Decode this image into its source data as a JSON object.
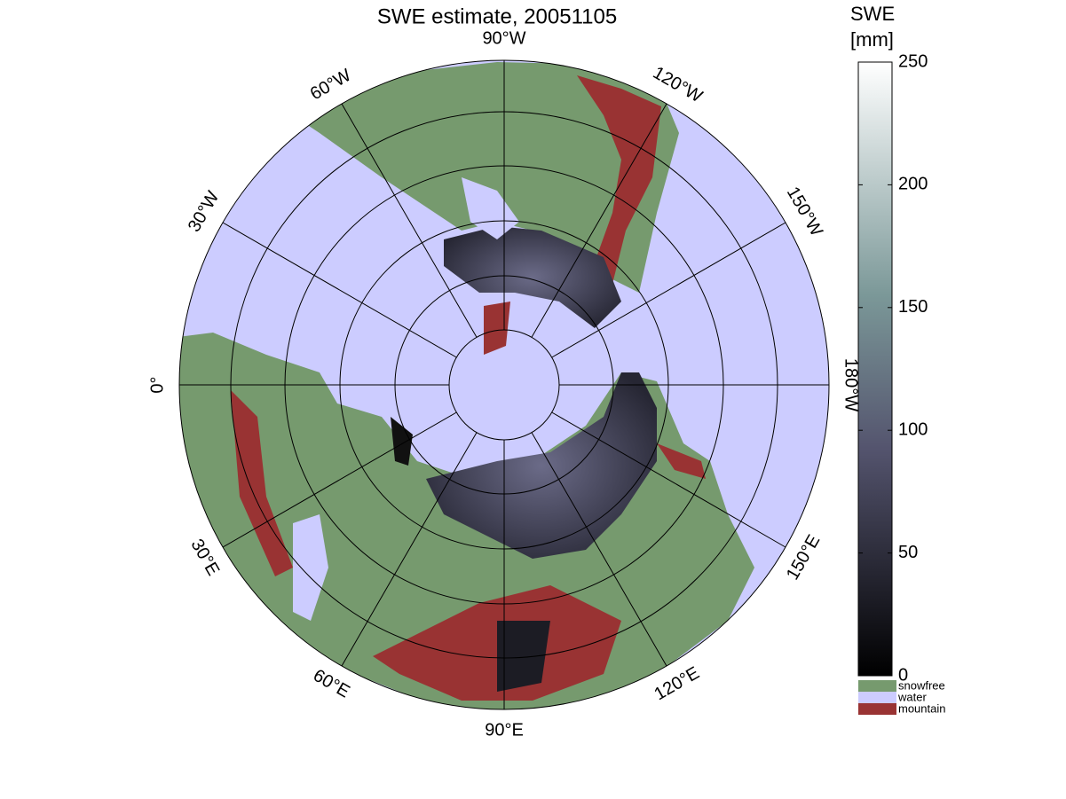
{
  "title": "SWE estimate, 20051105",
  "meridians": [
    {
      "value": -90,
      "label": "90°W"
    },
    {
      "value": -120,
      "label": "120°W"
    },
    {
      "value": -150,
      "label": "150°W"
    },
    {
      "value": -180,
      "label": "180°W"
    },
    {
      "value": 150,
      "label": "150°E"
    },
    {
      "value": 120,
      "label": "120°E"
    },
    {
      "value": 90,
      "label": "90°E"
    },
    {
      "value": 60,
      "label": "60°E"
    },
    {
      "value": 30,
      "label": "30°E"
    },
    {
      "value": 0,
      "label": "0°"
    },
    {
      "value": -30,
      "label": "30°W"
    },
    {
      "value": -60,
      "label": "60°W"
    }
  ],
  "colorbar": {
    "label": [
      "SWE",
      "[mm]"
    ],
    "lim": [
      0,
      250
    ],
    "ticks": [
      0,
      50,
      100,
      150,
      200,
      250
    ]
  },
  "legend": [
    {
      "name": "snowfree",
      "color": "#769a6e"
    },
    {
      "name": "water",
      "color": "#ccccff"
    },
    {
      "name": "mountain",
      "color": "#993333"
    }
  ]
}
